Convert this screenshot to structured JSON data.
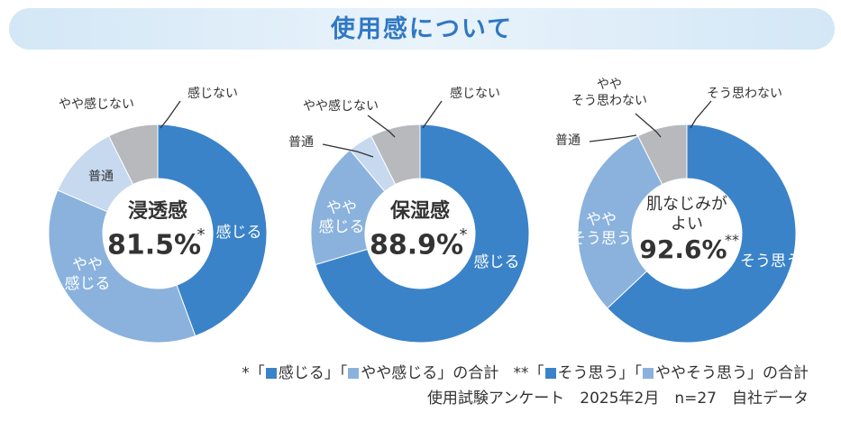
{
  "banner": {
    "title": "使用感について"
  },
  "colors": {
    "strong": "#3a83c9",
    "mild": "#8ab2dd",
    "neutral": "#c6d9ef",
    "negative_mild": "#d4dff0",
    "negative": "#b7b9bc",
    "label_text": "#333333",
    "white": "#ffffff"
  },
  "chart_data": [
    {
      "type": "pie",
      "donut": true,
      "center_title": [
        "浸透感"
      ],
      "center_value": "81.5%",
      "center_mark": "*",
      "slices": [
        {
          "label": "感じる",
          "value": 44.4,
          "color": "#3a83c9"
        },
        {
          "label": "やや感じる",
          "value": 37.1,
          "color": "#8ab2dd"
        },
        {
          "label": "普通",
          "value": 11.1,
          "color": "#c6d9ef"
        },
        {
          "label": "やや感じない",
          "value": 0,
          "color": "#d4dff0"
        },
        {
          "label": "感じない",
          "value": 7.4,
          "color": "#b7b9bc"
        }
      ]
    },
    {
      "type": "pie",
      "donut": true,
      "center_title": [
        "保湿感"
      ],
      "center_value": "88.9%",
      "center_mark": "*",
      "slices": [
        {
          "label": "感じる",
          "value": 70.4,
          "color": "#3a83c9"
        },
        {
          "label": "やや感じる",
          "value": 18.5,
          "color": "#8ab2dd"
        },
        {
          "label": "普通",
          "value": 3.7,
          "color": "#c6d9ef"
        },
        {
          "label": "やや感じない",
          "value": 0,
          "color": "#d4dff0"
        },
        {
          "label": "感じない",
          "value": 7.4,
          "color": "#b7b9bc"
        }
      ]
    },
    {
      "type": "pie",
      "donut": true,
      "center_title": [
        "肌なじみが",
        "よい"
      ],
      "center_value": "92.6%",
      "center_mark": "**",
      "slices": [
        {
          "label": "そう思う",
          "value": 63.0,
          "color": "#3a83c9"
        },
        {
          "label": "ややそう思う",
          "value": 29.6,
          "color": "#8ab2dd"
        },
        {
          "label": "普通",
          "value": 0,
          "color": "#c6d9ef"
        },
        {
          "label": "ややそう思わない",
          "value": 7.4,
          "color": "#b7b9bc"
        },
        {
          "label": "そう思わない",
          "value": 0,
          "color": "#b7b9bc"
        }
      ]
    }
  ],
  "labels": {
    "c1": {
      "strong": "感じる",
      "mild": [
        "やや",
        "感じる"
      ],
      "neutral": "普通",
      "neg_mild": "やや感じない",
      "neg": "感じない"
    },
    "c2": {
      "strong": "感じる",
      "mild": [
        "やや",
        "感じる"
      ],
      "neutral": "普通",
      "neg_mild": "やや感じない",
      "neg": "感じない"
    },
    "c3": {
      "strong": "そう思う",
      "mild": [
        "やや",
        "そう思う"
      ],
      "neutral": "普通",
      "neg_mild": [
        "やや",
        "そう思わない"
      ],
      "neg": "そう思わない"
    }
  },
  "footnote": {
    "line1": {
      "mark1": "*",
      "q1_open": "「",
      "q1_text": "感じる",
      "q1_mid": "」「",
      "q1_text2": "やや感じる",
      "q1_close": "」の合計",
      "mark2": "**",
      "q2_open": "「",
      "q2_text": "そう思う",
      "q2_mid": "」「",
      "q2_text2": "ややそう思う",
      "q2_close": "」の合計"
    },
    "line2": "使用試験アンケート　2025年2月　n=27　自社データ"
  }
}
